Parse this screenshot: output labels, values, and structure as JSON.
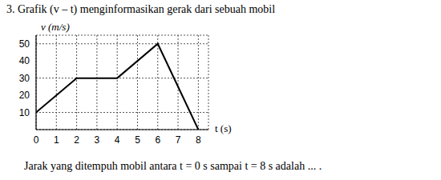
{
  "chart_data": {
    "type": "line",
    "title": "3. Grafik (v – t) menginformasikan gerak dari sebuah mobil",
    "x_label": "t (s)",
    "y_label": "v (m/s)",
    "annotations": [
      "Jarak yang ditempuh mobil antara t = 0 s sampai t = 8 s adalah ... ."
    ],
    "x": [
      0,
      2,
      4,
      6,
      8
    ],
    "values": [
      10,
      30,
      30,
      50,
      0
    ],
    "color": "#000000",
    "xlim": [
      0,
      8.5
    ],
    "xticks": [
      0,
      1,
      2,
      3,
      4,
      5,
      6,
      7,
      8
    ],
    "ylim": [
      0,
      55
    ],
    "yticks": [
      10,
      20,
      30,
      40,
      50
    ],
    "grid": true
  }
}
